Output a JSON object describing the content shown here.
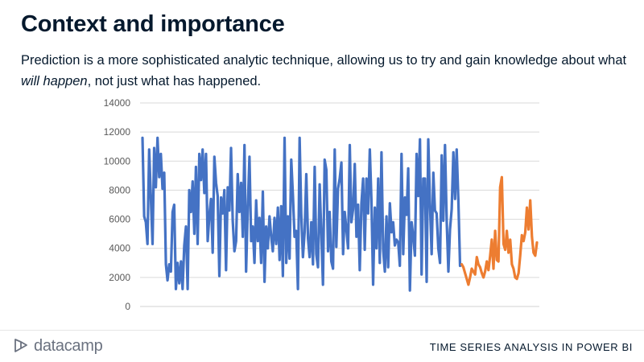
{
  "slide": {
    "title": "Context and importance",
    "body_before": "Prediction is a more sophisticated analytic technique, allowing us to try and gain knowledge about what ",
    "body_em": "will happen",
    "body_after": ", not just what has happened."
  },
  "footer": {
    "logo_text": "datacamp",
    "course_title": "TIME SERIES ANALYSIS IN POWER BI"
  },
  "colors": {
    "historical": "#4472c4",
    "forecast": "#ed7d31",
    "grid": "#d9d9d9",
    "axis_text": "#595959"
  },
  "chart_data": {
    "type": "line",
    "title": "",
    "xlabel": "",
    "ylabel": "",
    "ylim": [
      0,
      14000
    ],
    "yticks": [
      "0",
      "2000",
      "4000",
      "6000",
      "8000",
      "10000",
      "12000",
      "14000"
    ],
    "grid": true,
    "legend": "none",
    "series": [
      {
        "values": [
          11600,
          6200,
          5800,
          4300,
          10800,
          7500,
          4300,
          10900,
          8200,
          11600,
          8900,
          10500,
          8100,
          9200,
          2900,
          1800,
          2900,
          2400,
          6500,
          7000,
          1200,
          3000,
          1600,
          3100,
          1200,
          4200,
          5500,
          1200,
          8000,
          6500,
          8600,
          5000,
          9600,
          4300,
          10500,
          8700,
          10800,
          7800,
          10500,
          4500,
          6300,
          7400,
          3700,
          10300,
          8500,
          7600,
          2100,
          7500,
          6400,
          8000,
          2500,
          8200,
          6600,
          10900,
          5900,
          3800,
          4500,
          9100,
          6500,
          8500,
          4800,
          11100,
          2400,
          6800,
          10300,
          4500,
          5500,
          3000,
          7300,
          4500,
          6100,
          3000,
          7900,
          1700,
          5500,
          4000,
          6200,
          4800,
          3800,
          6100,
          4300,
          6800,
          3200,
          6900,
          2100,
          11600,
          3000,
          6200,
          3300,
          10100,
          7600,
          4800,
          5200,
          1200,
          11600,
          6400,
          3400,
          5100,
          9100,
          4700,
          3400,
          5800,
          2900,
          9600,
          3600,
          2700,
          8400,
          4900,
          1500,
          10100,
          9400,
          3800,
          6500,
          3100,
          2600,
          10800,
          4100,
          8100,
          8800,
          9900,
          3600,
          6500,
          5300,
          4000,
          11100,
          5800,
          6700,
          9800,
          4800,
          7000,
          2500,
          7100,
          8800,
          3900,
          8800,
          6400,
          10800,
          7300,
          1500,
          6800,
          4000,
          8800,
          3000,
          10600,
          3900,
          2400,
          6200,
          2700,
          7100,
          5100,
          5800,
          4200,
          4600,
          4400,
          2800,
          10500,
          3600,
          7500,
          6300,
          9500,
          1100,
          5800,
          4800,
          3500,
          10500,
          7600,
          11500,
          2200,
          8800,
          8800,
          1700,
          11500,
          7100,
          3600,
          9200,
          6600,
          6400,
          4000,
          3000,
          10400,
          5900,
          11100,
          5900,
          2400,
          5300,
          6700,
          10600,
          7400,
          10800,
          7300,
          2800
        ]
      },
      {
        "values": [
          2900,
          2700,
          2300,
          1900,
          1500,
          2000,
          2600,
          2400,
          2200,
          3400,
          2900,
          2700,
          2300,
          2000,
          2400,
          3100,
          2500,
          3500,
          4600,
          2600,
          5200,
          3200,
          3100,
          8200,
          8900,
          4300,
          3900,
          5200,
          3700,
          4600,
          2900,
          2600,
          2000,
          1900,
          2300,
          3500,
          4900,
          4500,
          5100,
          6800,
          5300,
          7300,
          4800,
          3700,
          3500,
          4400
        ]
      }
    ]
  }
}
